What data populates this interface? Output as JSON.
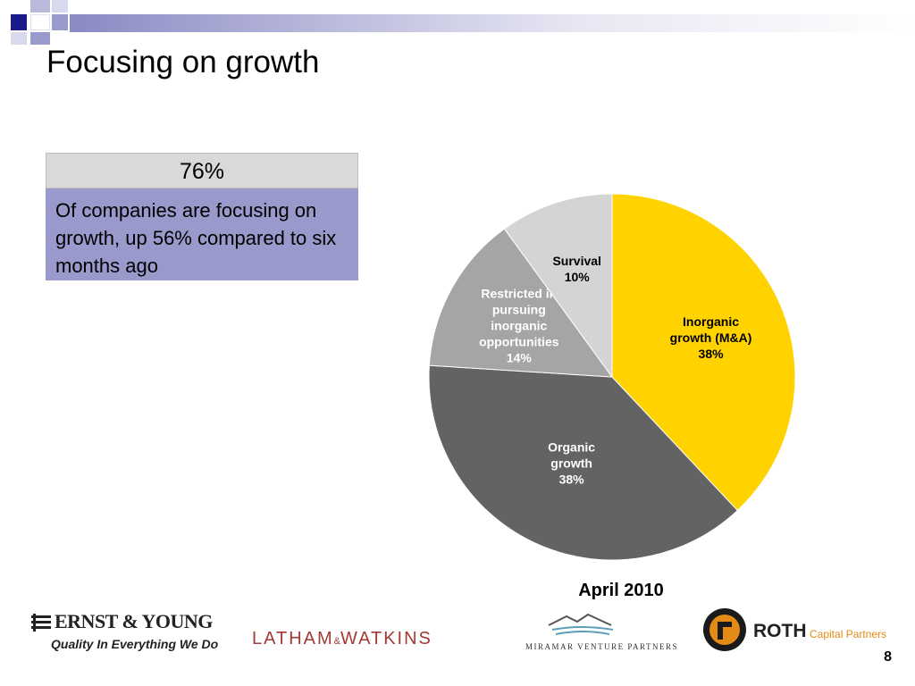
{
  "slide": {
    "title": "Focusing on growth",
    "page_number": "8"
  },
  "stat": {
    "value": "76%",
    "description": "Of companies are focusing on growth, up 56% compared to six months ago"
  },
  "chart_data": {
    "type": "pie",
    "title": "",
    "caption": "April 2010",
    "slices": [
      {
        "label_lines": [
          "Inorganic",
          "growth (M&A)",
          "38%"
        ],
        "value": 38,
        "color": "#ffd200",
        "text_color": "#000000"
      },
      {
        "label_lines": [
          "Organic",
          "growth",
          "38%"
        ],
        "value": 38,
        "color": "#636363",
        "text_color": "#ffffff"
      },
      {
        "label_lines": [
          "Restricted  in",
          "pursuing",
          "inorganic",
          "opportunities",
          "14%"
        ],
        "value": 14,
        "color": "#a5a5a5",
        "text_color": "#ffffff"
      },
      {
        "label_lines": [
          "Survival",
          "10%"
        ],
        "value": 10,
        "color": "#d4d4d4",
        "text_color": "#000000"
      }
    ]
  },
  "footer": {
    "ey": {
      "name": "ERNST & YOUNG",
      "tagline": "Quality In Everything We Do"
    },
    "latham": {
      "left": "LATHAM",
      "amp": "&",
      "right": "WATKINS"
    },
    "miramar": {
      "name": "MIRAMAR VENTURE PARTNERS"
    },
    "roth": {
      "name": "ROTH",
      "suffix": "Capital Partners"
    }
  },
  "colors": {
    "corner_dark": "#1a1a8c",
    "corner_light": "#9999cc",
    "stat_header_bg": "#d9d9d9",
    "stat_body_bg": "#9999cc",
    "latham_red": "#a23a37",
    "roth_orange": "#e48b16"
  }
}
